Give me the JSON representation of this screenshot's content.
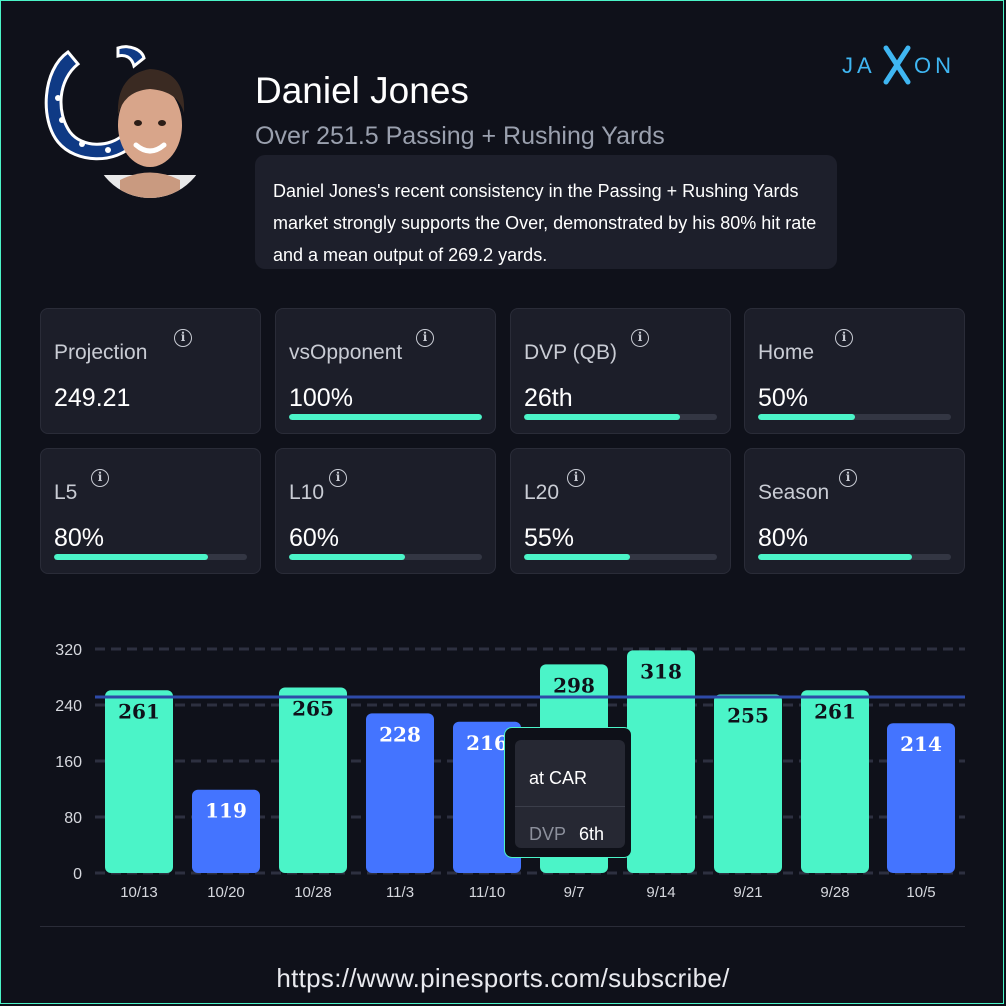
{
  "player": {
    "name": "Daniel Jones",
    "prop": "Over 251.5 Passing + Rushing Yards",
    "summary": "Daniel Jones's recent consistency in the Passing + Rushing Yards market strongly supports the Over, demonstrated by his 80% hit rate and a mean output of 269.2 yards.",
    "team_logo_icon": "horseshoe-logo-icon"
  },
  "brand": {
    "name": "JAXON",
    "color": "#3fb6f2"
  },
  "colors": {
    "accent": "#4bf4c8",
    "under": "#4474ff",
    "line": "#2e4aa8",
    "background": "#0f111a"
  },
  "stats": [
    {
      "label": "Projection",
      "value": "249.21",
      "fill": null
    },
    {
      "label": "vsOpponent",
      "value": "100%",
      "fill": 1.0
    },
    {
      "label": "DVP (QB)",
      "value": "26th",
      "fill": 0.81
    },
    {
      "label": "Home",
      "value": "50%",
      "fill": 0.5
    },
    {
      "label": "L5",
      "value": "80%",
      "fill": 0.8
    },
    {
      "label": "L10",
      "value": "60%",
      "fill": 0.6
    },
    {
      "label": "L20",
      "value": "55%",
      "fill": 0.55
    },
    {
      "label": "Season",
      "value": "80%",
      "fill": 0.8
    }
  ],
  "chart_data": {
    "type": "bar",
    "categories": [
      "10/13",
      "10/20",
      "10/28",
      "11/3",
      "11/10",
      "9/7",
      "9/14",
      "9/21",
      "9/28",
      "10/5"
    ],
    "values": [
      261,
      119,
      265,
      228,
      216,
      298,
      318,
      255,
      261,
      214
    ],
    "line": 251.5,
    "ylim": [
      0,
      320
    ],
    "yticks": [
      0,
      80,
      160,
      240,
      320
    ],
    "grid": true
  },
  "tooltip": {
    "opponent": "at CAR",
    "dvp_label": "DVP",
    "dvp_value": "6th"
  },
  "footer": {
    "url": "https://www.pinesports.com/subscribe/"
  }
}
